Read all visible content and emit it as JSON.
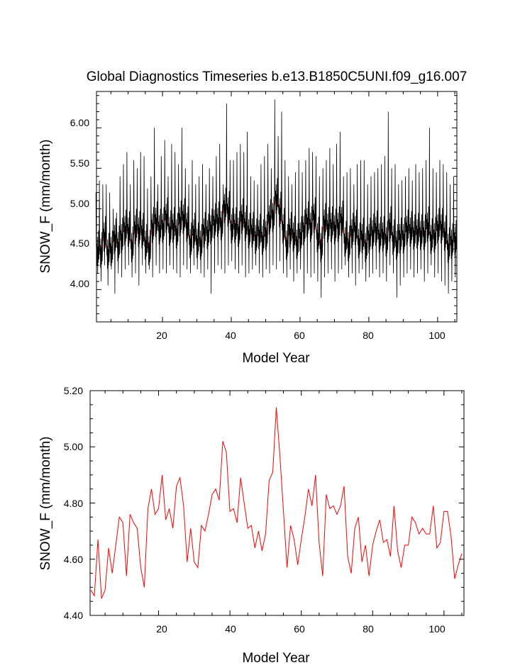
{
  "colors": {
    "monthly_line": "#000000",
    "annual_line": "#ff0000",
    "axis": "#000000",
    "background": "#ffffff"
  },
  "chart_data": [
    {
      "type": "line",
      "title": "Global Diagnostics Timeseries b.e13.B1850C5UNI.f09_g16.007",
      "xlabel": "Model Year",
      "ylabel": "SNOW_F (mm/month)",
      "xlim": [
        0.8,
        105.6
      ],
      "ylim": [
        3.6,
        6.45
      ],
      "xticks": [
        20,
        40,
        60,
        80,
        100
      ],
      "yticks": [
        4.0,
        4.5,
        5.0,
        5.5,
        6.0
      ],
      "xtick_labels": [
        "20",
        "40",
        "60",
        "80",
        "100"
      ],
      "ytick_labels": [
        "4.00",
        "4.50",
        "5.00",
        "5.50",
        "6.00"
      ],
      "grid": false,
      "monthly_peaks": [
        5.2,
        5.35,
        5.3,
        5.3,
        5.2,
        5.0,
        4.95,
        5.4,
        5.55,
        5.7,
        5.3,
        5.6,
        5.5,
        5.7,
        5.65,
        5.25,
        5.4,
        6.0,
        5.3,
        5.65,
        5.85,
        5.4,
        5.8,
        5.7,
        5.55,
        6.0,
        5.5,
        5.3,
        5.6,
        5.3,
        5.4,
        5.55,
        5.3,
        5.5,
        5.4,
        5.65,
        5.8,
        5.3,
        6.3,
        5.6,
        5.6,
        5.7,
        5.8,
        5.7,
        5.95,
        5.4,
        5.35,
        5.3,
        5.55,
        5.65,
        5.8,
        5.5,
        6.35,
        5.9,
        6.2,
        5.6,
        5.4,
        5.3,
        5.45,
        5.6,
        5.45,
        5.6,
        5.75,
        5.7,
        5.65,
        5.4,
        5.5,
        5.6,
        5.75,
        5.55,
        5.8,
        5.95,
        5.4,
        5.45,
        5.5,
        5.3,
        5.55,
        5.6,
        5.6,
        5.3,
        5.4,
        5.45,
        5.5,
        5.55,
        5.65,
        6.2,
        5.5,
        5.55,
        5.3,
        5.35,
        5.4,
        5.5,
        5.35,
        5.55,
        5.45,
        5.5,
        5.6,
        6.0,
        5.5,
        5.45,
        5.6,
        5.55,
        5.45,
        5.3,
        5.4
      ],
      "monthly_troughs": [
        4.2,
        4.1,
        4.3,
        4.05,
        4.25,
        3.95,
        4.2,
        4.15,
        4.25,
        4.3,
        4.15,
        4.2,
        4.05,
        4.3,
        4.2,
        4.25,
        4.15,
        4.3,
        4.2,
        4.25,
        4.2,
        4.3,
        4.25,
        4.2,
        4.15,
        4.3,
        4.25,
        4.2,
        4.3,
        4.25,
        4.2,
        4.15,
        4.25,
        3.95,
        4.2,
        4.3,
        4.25,
        4.2,
        4.3,
        4.35,
        4.25,
        4.2,
        4.3,
        4.15,
        4.2,
        4.25,
        4.3,
        4.2,
        4.15,
        4.25,
        4.2,
        4.3,
        4.25,
        4.35,
        4.2,
        4.15,
        4.25,
        4.1,
        4.2,
        4.25,
        3.95,
        4.2,
        4.15,
        4.2,
        4.1,
        3.9,
        4.15,
        4.2,
        4.25,
        4.1,
        4.2,
        4.25,
        4.3,
        4.15,
        4.2,
        4.05,
        4.2,
        4.25,
        4.1,
        4.15,
        4.2,
        4.25,
        4.15,
        4.2,
        4.1,
        4.3,
        4.2,
        3.9,
        4.05,
        4.15,
        4.2,
        4.25,
        4.15,
        4.2,
        4.25,
        4.1,
        4.2,
        4.3,
        4.15,
        4.2,
        4.1,
        4.05,
        3.95,
        4.1,
        4.15
      ]
    },
    {
      "type": "line",
      "xlabel": "Model Year",
      "ylabel": "SNOW_F (mm/month)",
      "xlim": [
        0.8,
        105.6
      ],
      "ylim": [
        4.4,
        5.2
      ],
      "xticks": [
        20,
        40,
        60,
        80,
        100
      ],
      "yticks": [
        4.4,
        4.6,
        4.8,
        5.0,
        5.2
      ],
      "xtick_labels": [
        "20",
        "40",
        "60",
        "80",
        "100"
      ],
      "ytick_labels": [
        "4.40",
        "4.60",
        "4.80",
        "5.00",
        "5.20"
      ],
      "grid": false,
      "series": [
        {
          "x": [
            1,
            2,
            3,
            4,
            5,
            6,
            7,
            8,
            9,
            10,
            11,
            12,
            13,
            14,
            15,
            16,
            17,
            18,
            19,
            20,
            21,
            22,
            23,
            24,
            25,
            26,
            27,
            28,
            29,
            30,
            31,
            32,
            33,
            34,
            35,
            36,
            37,
            38,
            39,
            40,
            41,
            42,
            43,
            44,
            45,
            46,
            47,
            48,
            49,
            50,
            51,
            52,
            53,
            54,
            55,
            56,
            57,
            58,
            59,
            60,
            61,
            62,
            63,
            64,
            65,
            66,
            67,
            68,
            69,
            70,
            71,
            72,
            73,
            74,
            75,
            76,
            77,
            78,
            79,
            80,
            81,
            82,
            83,
            84,
            85,
            86,
            87,
            88,
            89,
            90,
            91,
            92,
            93,
            94,
            95,
            96,
            97,
            98,
            99,
            100,
            101,
            102,
            103,
            104,
            105
          ],
          "values": [
            4.49,
            4.47,
            4.67,
            4.46,
            4.49,
            4.64,
            4.55,
            4.65,
            4.75,
            4.73,
            4.54,
            4.76,
            4.73,
            4.71,
            4.57,
            4.5,
            4.78,
            4.85,
            4.76,
            4.78,
            4.9,
            4.74,
            4.78,
            4.71,
            4.86,
            4.89,
            4.79,
            4.59,
            4.71,
            4.59,
            4.57,
            4.72,
            4.7,
            4.76,
            4.83,
            4.85,
            4.81,
            5.02,
            4.98,
            4.77,
            4.78,
            4.73,
            4.89,
            4.8,
            4.71,
            4.72,
            4.64,
            4.7,
            4.63,
            4.69,
            4.88,
            4.91,
            5.14,
            4.97,
            4.77,
            4.57,
            4.72,
            4.67,
            4.58,
            4.67,
            4.75,
            4.85,
            4.79,
            4.9,
            4.66,
            4.54,
            4.83,
            4.78,
            4.79,
            4.76,
            4.79,
            4.86,
            4.61,
            4.55,
            4.71,
            4.75,
            4.59,
            4.65,
            4.54,
            4.65,
            4.7,
            4.74,
            4.66,
            4.67,
            4.61,
            4.79,
            4.63,
            4.57,
            4.65,
            4.65,
            4.75,
            4.73,
            4.69,
            4.71,
            4.69,
            4.69,
            4.79,
            4.64,
            4.66,
            4.77,
            4.77,
            4.68,
            4.53,
            4.58,
            4.62
          ]
        }
      ]
    }
  ]
}
